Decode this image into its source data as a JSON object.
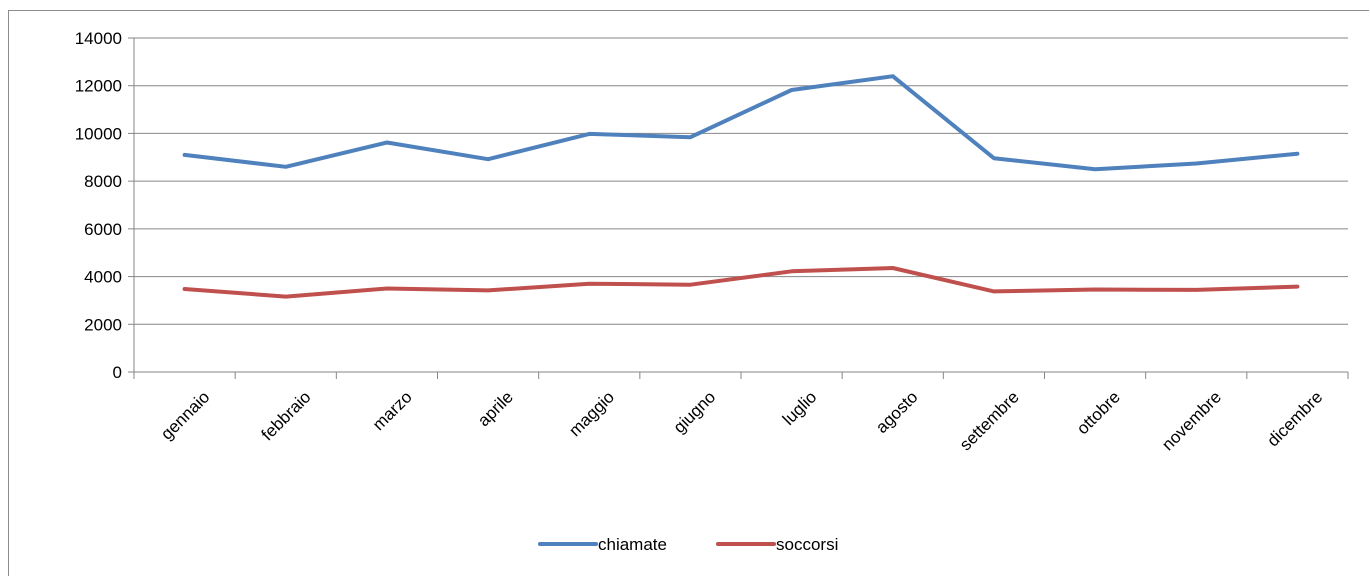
{
  "chart_data": {
    "type": "line",
    "title": "",
    "xlabel": "",
    "ylabel": "",
    "categories": [
      "gennaio",
      "febbraio",
      "marzo",
      "aprile",
      "maggio",
      "giugno",
      "luglio",
      "agosto",
      "settembre",
      "ottobre",
      "novembre",
      "dicembre"
    ],
    "series": [
      {
        "name": "chiamate",
        "color": "#4f81bd",
        "values": [
          9100,
          8600,
          9620,
          8920,
          9980,
          9840,
          11820,
          12400,
          8960,
          8500,
          8740,
          9150
        ]
      },
      {
        "name": "soccorsi",
        "color": "#c0504d",
        "values": [
          3480,
          3160,
          3500,
          3420,
          3700,
          3660,
          4220,
          4360,
          3380,
          3460,
          3440,
          3580
        ]
      }
    ],
    "ylim": [
      0,
      14000
    ],
    "yticks": [
      0,
      2000,
      4000,
      6000,
      8000,
      10000,
      12000,
      14000
    ],
    "grid": "horizontal",
    "legend_position": "bottom"
  }
}
